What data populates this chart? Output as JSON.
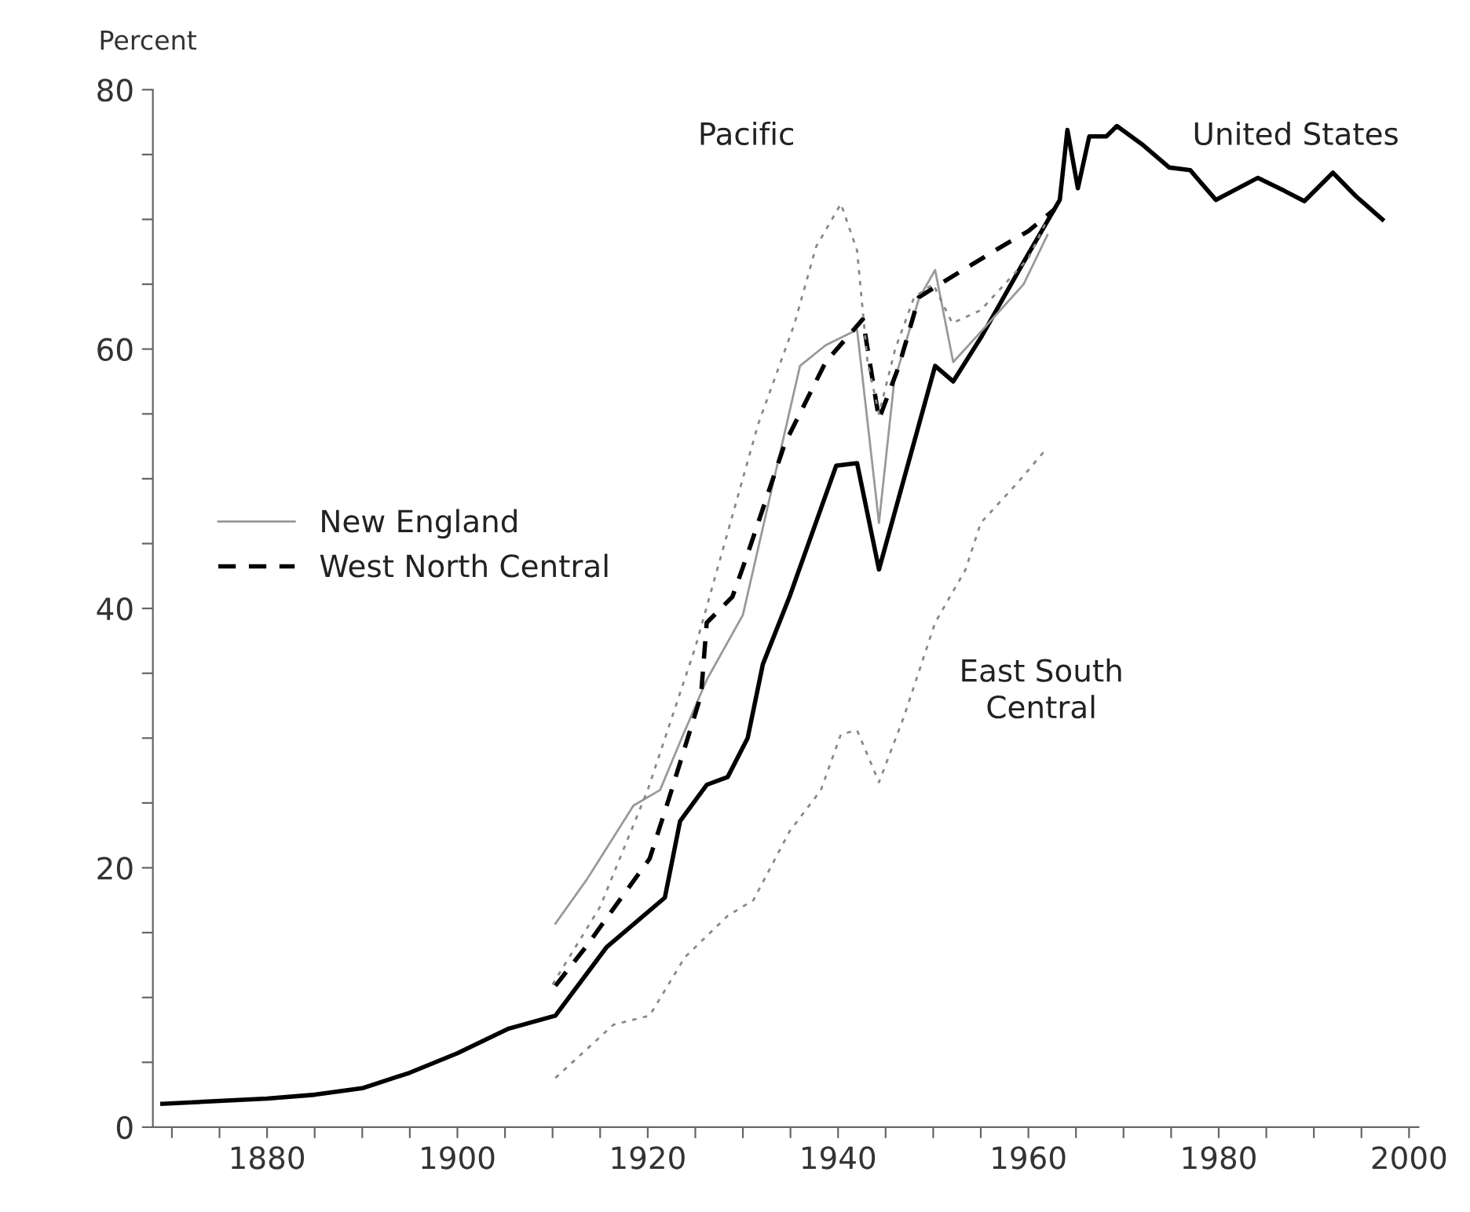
{
  "chart_data": {
    "type": "line",
    "ylabel": "Percent",
    "xlim": [
      1868,
      2001
    ],
    "ylim": [
      0,
      80
    ],
    "xticks": [
      {
        "value": 1870,
        "label": null
      },
      {
        "value": 1875,
        "label": null
      },
      1880,
      {
        "value": 1885,
        "label": null
      },
      {
        "value": 1890,
        "label": null
      },
      {
        "value": 1895,
        "label": null
      },
      1900,
      {
        "value": 1905,
        "label": null
      },
      {
        "value": 1910,
        "label": null
      },
      {
        "value": 1915,
        "label": null
      },
      1920,
      {
        "value": 1925,
        "label": null
      },
      {
        "value": 1930,
        "label": null
      },
      {
        "value": 1935,
        "label": null
      },
      1940,
      {
        "value": 1945,
        "label": null
      },
      {
        "value": 1950,
        "label": null
      },
      {
        "value": 1955,
        "label": null
      },
      1960,
      {
        "value": 1965,
        "label": null
      },
      {
        "value": 1970,
        "label": null
      },
      {
        "value": 1975,
        "label": null
      },
      1980,
      {
        "value": 1985,
        "label": null
      },
      {
        "value": 1990,
        "label": null
      },
      {
        "value": 1995,
        "label": null
      },
      2000
    ],
    "yticks": [
      0,
      {
        "value": 5,
        "label": null
      },
      {
        "value": 10,
        "label": null
      },
      {
        "value": 15,
        "label": null
      },
      20,
      {
        "value": 25,
        "label": null
      },
      {
        "value": 30,
        "label": null
      },
      {
        "value": 35,
        "label": null
      },
      40,
      {
        "value": 45,
        "label": null
      },
      {
        "value": 50,
        "label": null
      },
      {
        "value": 55,
        "label": null
      },
      60,
      {
        "value": 65,
        "label": null
      },
      {
        "value": 70,
        "label": null
      },
      {
        "value": 75,
        "label": null
      },
      80
    ],
    "grid": false,
    "legend": "left",
    "marker": "none",
    "series": [
      {
        "color": "#000000",
        "line_style": "solid",
        "x": [
          1869,
          1880,
          1885,
          1890,
          1895,
          1900,
          1905.4,
          1910.3,
          1915.7,
          1921.8,
          1923.4,
          1926.2,
          1928.4,
          1930.5,
          1932.1,
          1934.9,
          1939.8,
          1942,
          1944.3,
          1950.2,
          1952.1,
          1955.1,
          1959.5,
          1963.3,
          1964.1,
          1965.2,
          1966.4,
          1968.2,
          1969.3,
          1972.1,
          1974.8,
          1977,
          1979.7,
          1984.1,
          1986.9,
          1989,
          1992,
          1994.4,
          1997.2
        ],
        "values": [
          1.8,
          2.2,
          2.5,
          3.0,
          4.2,
          5.7,
          7.6,
          8.6,
          13.9,
          17.7,
          23.6,
          26.4,
          27,
          30,
          35.7,
          40.9,
          51,
          51.2,
          43,
          58.7,
          57.5,
          61,
          66.7,
          71.5,
          76.9,
          72.4,
          76.4,
          76.4,
          77.2,
          75.7,
          74,
          73.8,
          71.5,
          73.2,
          72.2,
          71.4,
          73.6,
          71.8,
          70
        ]
      },
      {
        "name": "New England",
        "color": "#999999",
        "line_style": "solid",
        "x": [
          1910.3,
          1913.6,
          1918.5,
          1921.3,
          1923.4,
          1926.2,
          1930,
          1936,
          1938.7,
          1942,
          1944.3,
          1945.9,
          1948.5,
          1950.2,
          1952.1,
          1954.6,
          1959.5,
          1962
        ],
        "values": [
          15.7,
          19.1,
          24.8,
          26,
          29.7,
          34.5,
          39.5,
          58.7,
          60.3,
          61.5,
          46.6,
          57.5,
          63.9,
          66.1,
          59,
          61,
          65,
          68.8
        ]
      },
      {
        "name": "West North Central",
        "color": "#000000",
        "line_style": "dashed",
        "x": [
          1910.3,
          1913.6,
          1920.2,
          1922.3,
          1925.6,
          1926.2,
          1928.9,
          1930.5,
          1934.4,
          1938.7,
          1942.6,
          1944.3,
          1946.4,
          1948.5,
          1952.9,
          1957.4,
          1960,
          1962.8
        ],
        "values": [
          10.9,
          14,
          20.7,
          25.5,
          33.3,
          38.9,
          40.9,
          44.2,
          52.7,
          59,
          62.3,
          54.6,
          58.7,
          64,
          66,
          68,
          69.1,
          70.8
        ]
      },
      {
        "color": "#888888",
        "line_style": "dotted",
        "x": [
          1910,
          1915,
          1920,
          1925,
          1931.6,
          1935.4,
          1937.7,
          1940.3,
          1942,
          1943.1,
          1944.3,
          1946,
          1948,
          1950,
          1952,
          1955,
          1960,
          1962
        ],
        "values": [
          11,
          17,
          26,
          37,
          54.2,
          61.9,
          67.9,
          71.2,
          67.6,
          59,
          55,
          60,
          64,
          65,
          62,
          63,
          67,
          70
        ]
      },
      {
        "color": "#888888",
        "line_style": "dotted",
        "x": [
          1910.3,
          1916.4,
          1920.2,
          1923.9,
          1928.4,
          1931.1,
          1934.9,
          1938.2,
          1940.3,
          1942,
          1944.3,
          1946.9,
          1950.2,
          1953.4,
          1955,
          1959,
          1962
        ],
        "values": [
          3.8,
          7.9,
          8.6,
          13.1,
          16.3,
          17.5,
          22.8,
          26,
          30.3,
          30.6,
          26.6,
          31.6,
          38.9,
          43,
          46.6,
          49.8,
          52.4
        ]
      }
    ],
    "annotations": [
      "Pacific",
      "United States",
      "East South\nCentral"
    ]
  }
}
